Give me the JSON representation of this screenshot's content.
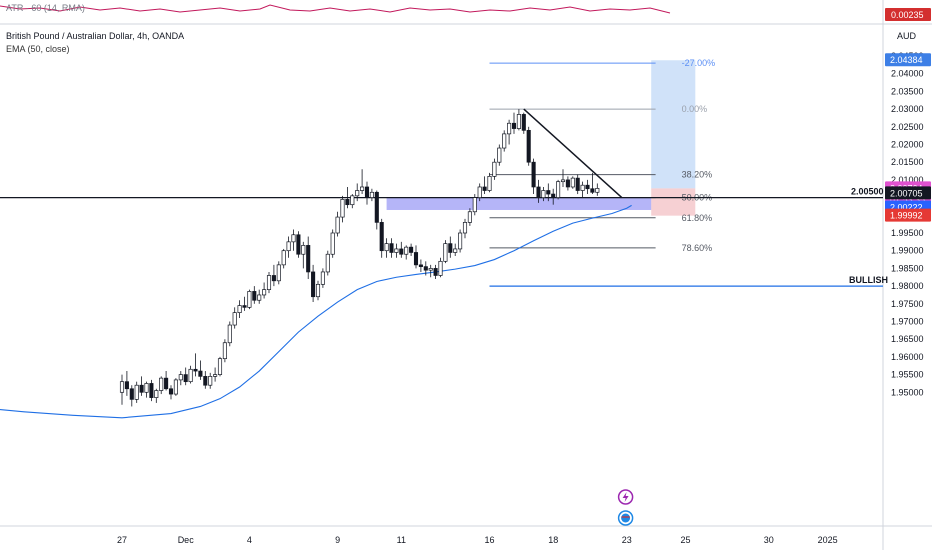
{
  "atr_pane": {
    "label": "ATR · 60 (14, RMA)",
    "value_badge": "0.00235",
    "line_color": "#c2185b",
    "line_points": [
      [
        0,
        4
      ],
      [
        20,
        7
      ],
      [
        40,
        6
      ],
      [
        60,
        9
      ],
      [
        80,
        5
      ],
      [
        100,
        8
      ],
      [
        120,
        6
      ],
      [
        140,
        9
      ],
      [
        160,
        7
      ],
      [
        180,
        10
      ],
      [
        200,
        8
      ],
      [
        220,
        6
      ],
      [
        240,
        9
      ],
      [
        260,
        7
      ],
      [
        270,
        3
      ],
      [
        290,
        8
      ],
      [
        310,
        9
      ],
      [
        330,
        6
      ],
      [
        350,
        9
      ],
      [
        370,
        7
      ],
      [
        390,
        10
      ],
      [
        410,
        6
      ],
      [
        430,
        8
      ],
      [
        450,
        7
      ],
      [
        470,
        10
      ],
      [
        490,
        8
      ],
      [
        510,
        9
      ],
      [
        530,
        6
      ],
      [
        550,
        8
      ],
      [
        570,
        5
      ],
      [
        590,
        9
      ],
      [
        610,
        7
      ],
      [
        630,
        8
      ],
      [
        650,
        6
      ],
      [
        670,
        11
      ]
    ]
  },
  "header": {
    "symbol": "British Pound / Australian Dollar, 4h, OANDA",
    "indicator": "EMA (50, close)",
    "currency": "AUD"
  },
  "chart_data": {
    "type": "candlestick",
    "symbol": "GBPAUD",
    "timeframe": "4h",
    "ylim": [
      1.945,
      2.048
    ],
    "y_ticks": [
      1.95,
      1.955,
      1.96,
      1.965,
      1.97,
      1.975,
      1.98,
      1.985,
      1.99,
      1.995,
      2.0,
      2.005,
      2.01,
      2.015,
      2.02,
      2.025,
      2.03,
      2.035,
      2.04,
      2.045
    ],
    "x_ticks": [
      {
        "label": "25",
        "i": -30
      },
      {
        "label": "27",
        "i": 0
      },
      {
        "label": "Dec",
        "i": 13
      },
      {
        "label": "4",
        "i": 26
      },
      {
        "label": "9",
        "i": 44
      },
      {
        "label": "11",
        "i": 57
      },
      {
        "label": "16",
        "i": 75
      },
      {
        "label": "18",
        "i": 88
      },
      {
        "label": "23",
        "i": 103
      },
      {
        "label": "25",
        "i": 115
      },
      {
        "label": "30",
        "i": 132
      },
      {
        "label": "2025",
        "i": 144
      }
    ],
    "candles": [
      [
        1.95,
        1.955,
        1.9465,
        1.953
      ],
      [
        1.953,
        1.956,
        1.949,
        1.951
      ],
      [
        1.951,
        1.952,
        1.946,
        1.948
      ],
      [
        1.948,
        1.953,
        1.947,
        1.952
      ],
      [
        1.952,
        1.9545,
        1.949,
        1.95
      ],
      [
        1.95,
        1.953,
        1.9485,
        1.9525
      ],
      [
        1.9525,
        1.9535,
        1.9475,
        1.9485
      ],
      [
        1.9485,
        1.951,
        1.947,
        1.9505
      ],
      [
        1.9505,
        1.9545,
        1.9495,
        1.954
      ],
      [
        1.954,
        1.956,
        1.9505,
        1.951
      ],
      [
        1.951,
        1.952,
        1.948,
        1.9495
      ],
      [
        1.9495,
        1.954,
        1.949,
        1.9535
      ],
      [
        1.9535,
        1.956,
        1.952,
        1.955
      ],
      [
        1.955,
        1.957,
        1.952,
        1.953
      ],
      [
        1.953,
        1.9575,
        1.9525,
        1.9565
      ],
      [
        1.9565,
        1.961,
        1.9545,
        1.956
      ],
      [
        1.956,
        1.959,
        1.9535,
        1.9545
      ],
      [
        1.9545,
        1.956,
        1.951,
        1.952
      ],
      [
        1.952,
        1.9555,
        1.951,
        1.9545
      ],
      [
        1.9545,
        1.957,
        1.953,
        1.955
      ],
      [
        1.955,
        1.96,
        1.9545,
        1.9595
      ],
      [
        1.9595,
        1.965,
        1.9585,
        1.964
      ],
      [
        1.964,
        1.97,
        1.963,
        1.969
      ],
      [
        1.969,
        1.974,
        1.968,
        1.9725
      ],
      [
        1.9725,
        1.976,
        1.971,
        1.9745
      ],
      [
        1.9745,
        1.977,
        1.973,
        1.974
      ],
      [
        1.974,
        1.979,
        1.9735,
        1.9785
      ],
      [
        1.9785,
        1.98,
        1.975,
        1.976
      ],
      [
        1.976,
        1.979,
        1.975,
        1.9775
      ],
      [
        1.9775,
        1.981,
        1.9765,
        1.979
      ],
      [
        1.979,
        1.984,
        1.978,
        1.983
      ],
      [
        1.983,
        1.986,
        1.98,
        1.9815
      ],
      [
        1.9815,
        1.987,
        1.9805,
        1.986
      ],
      [
        1.986,
        1.9905,
        1.985,
        1.99
      ],
      [
        1.99,
        1.994,
        1.988,
        1.9925
      ],
      [
        1.9925,
        1.996,
        1.99,
        1.9945
      ],
      [
        1.9945,
        1.9955,
        1.988,
        1.989
      ],
      [
        1.989,
        1.9925,
        1.985,
        1.9915
      ],
      [
        1.9915,
        1.994,
        1.982,
        1.984
      ],
      [
        1.984,
        1.986,
        1.9755,
        1.977
      ],
      [
        1.977,
        1.9815,
        1.976,
        1.9805
      ],
      [
        1.9805,
        1.985,
        1.9795,
        1.984
      ],
      [
        1.984,
        1.99,
        1.983,
        1.989
      ],
      [
        1.989,
        1.996,
        1.988,
        1.995
      ],
      [
        1.995,
        2.001,
        1.994,
        1.9995
      ],
      [
        1.9995,
        2.0055,
        1.998,
        2.0045
      ],
      [
        2.0045,
        2.008,
        2.002,
        2.003
      ],
      [
        2.003,
        2.006,
        2.002,
        2.0055
      ],
      [
        2.0055,
        2.009,
        2.004,
        2.007
      ],
      [
        2.007,
        2.013,
        2.006,
        2.008
      ],
      [
        2.008,
        2.0095,
        2.003,
        2.005
      ],
      [
        2.005,
        2.0075,
        2.004,
        2.0065
      ],
      [
        2.0065,
        2.007,
        1.996,
        1.998
      ],
      [
        1.998,
        1.999,
        1.988,
        1.99
      ],
      [
        1.99,
        1.9935,
        1.988,
        1.992
      ],
      [
        1.992,
        1.9935,
        1.988,
        1.9895
      ],
      [
        1.9895,
        1.992,
        1.988,
        1.9905
      ],
      [
        1.9905,
        1.9925,
        1.988,
        1.989
      ],
      [
        1.989,
        1.9915,
        1.9875,
        1.991
      ],
      [
        1.991,
        1.992,
        1.9885,
        1.9895
      ],
      [
        1.9895,
        1.9915,
        1.985,
        1.986
      ],
      [
        1.986,
        1.9875,
        1.984,
        1.9855
      ],
      [
        1.9855,
        1.987,
        1.983,
        1.9845
      ],
      [
        1.9845,
        1.986,
        1.9825,
        1.985
      ],
      [
        1.985,
        1.986,
        1.982,
        1.983
      ],
      [
        1.983,
        1.988,
        1.9825,
        1.987
      ],
      [
        1.987,
        1.993,
        1.9865,
        1.992
      ],
      [
        1.992,
        1.994,
        1.988,
        1.9895
      ],
      [
        1.9895,
        1.992,
        1.9885,
        1.9905
      ],
      [
        1.9905,
        1.996,
        1.9895,
        1.995
      ],
      [
        1.995,
        1.999,
        1.9935,
        1.998
      ],
      [
        1.998,
        2.002,
        1.997,
        2.001
      ],
      [
        2.001,
        2.006,
        2.0,
        2.005
      ],
      [
        2.005,
        2.009,
        2.004,
        2.008
      ],
      [
        2.008,
        2.011,
        2.006,
        2.007
      ],
      [
        2.007,
        2.012,
        2.0065,
        2.011
      ],
      [
        2.011,
        2.016,
        2.01,
        2.015
      ],
      [
        2.015,
        2.02,
        2.014,
        2.019
      ],
      [
        2.019,
        2.024,
        2.018,
        2.023
      ],
      [
        2.023,
        2.027,
        2.02,
        2.026
      ],
      [
        2.026,
        2.029,
        2.023,
        2.0245
      ],
      [
        2.0245,
        2.03,
        2.024,
        2.0285
      ],
      [
        2.0285,
        2.029,
        2.023,
        2.024
      ],
      [
        2.024,
        2.025,
        2.014,
        2.015
      ],
      [
        2.015,
        2.016,
        2.006,
        2.008
      ],
      [
        2.008,
        2.01,
        2.0035,
        2.005
      ],
      [
        2.005,
        2.008,
        2.004,
        2.007
      ],
      [
        2.007,
        2.009,
        2.004,
        2.006
      ],
      [
        2.006,
        2.0075,
        2.003,
        2.005
      ],
      [
        2.005,
        2.01,
        2.0045,
        2.0095
      ],
      [
        2.0095,
        2.013,
        2.008,
        2.01
      ],
      [
        2.01,
        2.011,
        2.007,
        2.008
      ],
      [
        2.008,
        2.011,
        2.0075,
        2.0105
      ],
      [
        2.0105,
        2.0115,
        2.006,
        2.007
      ],
      [
        2.007,
        2.0095,
        2.005,
        2.0085
      ],
      [
        2.0085,
        2.01,
        2.006,
        2.0075
      ],
      [
        2.0075,
        2.012,
        2.006,
        2.0065
      ],
      [
        2.0065,
        2.009,
        2.0055,
        2.0076
      ]
    ],
    "ema_color": "#1f6fe5",
    "ema": [
      [
        -53,
        1.951
      ],
      [
        -40,
        1.9478
      ],
      [
        -30,
        1.9458
      ],
      [
        -20,
        1.9445
      ],
      [
        -10,
        1.9435
      ],
      [
        0,
        1.9428
      ],
      [
        10,
        1.944
      ],
      [
        16,
        1.946
      ],
      [
        20,
        1.9482
      ],
      [
        24,
        1.9515
      ],
      [
        28,
        1.956
      ],
      [
        32,
        1.9615
      ],
      [
        36,
        1.967
      ],
      [
        40,
        1.9715
      ],
      [
        44,
        1.9755
      ],
      [
        48,
        1.979
      ],
      [
        52,
        1.9813
      ],
      [
        56,
        1.9825
      ],
      [
        60,
        1.9833
      ],
      [
        64,
        1.984
      ],
      [
        68,
        1.9848
      ],
      [
        72,
        1.9858
      ],
      [
        76,
        1.9875
      ],
      [
        80,
        1.99
      ],
      [
        84,
        1.9928
      ],
      [
        88,
        1.9955
      ],
      [
        92,
        1.9978
      ],
      [
        96,
        1.9992
      ],
      [
        100,
        2.0005
      ],
      [
        103,
        2.002
      ],
      [
        104,
        2.0028
      ]
    ],
    "levels": [
      {
        "label": "2.00500",
        "value": 2.005,
        "color": "#131722",
        "extend": "full",
        "bold": true
      }
    ],
    "zone": {
      "from": 2.0015,
      "to": 2.005,
      "i0": 54,
      "i1": 108,
      "color": "#5b5bf0"
    },
    "bullish_line": {
      "label": "BULLISH",
      "value": 1.98,
      "i0": 75,
      "color": "#1f6fe5"
    },
    "fib": {
      "i0": 75,
      "i1": 104,
      "color": "#9aa0ab",
      "levels": [
        {
          "label": "-27.00%",
          "value": 2.043,
          "color": "#5b8ff5"
        },
        {
          "label": "0.00%",
          "value": 2.03,
          "color": "#9aa0ab"
        },
        {
          "label": "38.20%",
          "value": 2.0115,
          "color": "#555a64"
        },
        {
          "label": "50.00%",
          "value": 2.005,
          "color": "#555a64"
        },
        {
          "label": "61.80%",
          "value": 1.9993,
          "color": "#555a64"
        },
        {
          "label": "78.60%",
          "value": 1.9908,
          "color": "#555a64"
        }
      ]
    },
    "trendline": {
      "from": [
        82,
        2.03
      ],
      "to": [
        102,
        2.005
      ],
      "color": "#131722"
    },
    "position": {
      "i0": 108,
      "i1": 117,
      "entry": 2.0076,
      "target": 2.0438,
      "stop": 1.9999,
      "target_color": "#bcd6f7",
      "stop_color": "#f4c4c8"
    },
    "price_badges": [
      {
        "label": "2.04384",
        "value": 2.0438,
        "bg": "#3d7fe6",
        "fg": "#ffffff"
      },
      {
        "label": "2.00764",
        "value": 2.0076,
        "bg": "#e052d0",
        "fg": "#ffffff",
        "sub": "01:53:35"
      },
      {
        "label": "2.00705",
        "value": 2.0062,
        "bg": "#131722",
        "fg": "#ffffff"
      },
      {
        "label": "2.00222",
        "value": 2.0022,
        "bg": "#2962ff",
        "fg": "#ffffff"
      },
      {
        "label": "1.99992",
        "value": 1.9999,
        "bg": "#e53935",
        "fg": "#ffffff"
      }
    ],
    "events": [
      {
        "type": "lightning-icon",
        "i": 104,
        "offset": 0,
        "color": "#9c27b0"
      },
      {
        "type": "flag-icon",
        "i": 104,
        "offset": 1,
        "color": "#1e88e5"
      }
    ]
  }
}
